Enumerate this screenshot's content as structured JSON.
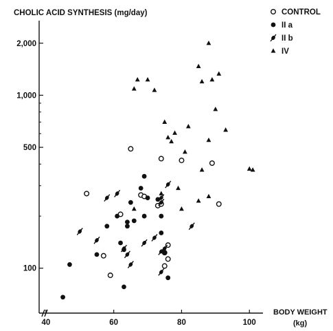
{
  "chart_data": {
    "type": "scatter",
    "title": "",
    "ylabel": "CHOLIC ACID SYNTHESIS (mg/day)",
    "xlabel_line1": "BODY WEIGHT",
    "xlabel_line2": "(kg)",
    "y_scale": "log",
    "x_ticks": [
      "40",
      "60",
      "80",
      "100"
    ],
    "y_ticks": [
      "100",
      "500",
      "1,000",
      "2,000"
    ],
    "x_tick_values": [
      40,
      60,
      80,
      100
    ],
    "y_tick_values": [
      100,
      500,
      1000,
      2000
    ],
    "xlim": [
      38,
      104
    ],
    "ylim": [
      55,
      2700
    ],
    "axis_break": true,
    "grid": false,
    "legend_position": "top-right",
    "series": [
      {
        "name": "CONTROL",
        "marker": "open-circle",
        "points": [
          [
            52,
            270
          ],
          [
            57,
            118
          ],
          [
            59,
            91
          ],
          [
            62,
            205
          ],
          [
            65,
            490
          ],
          [
            68,
            265
          ],
          [
            69,
            260
          ],
          [
            73,
            230
          ],
          [
            74,
            235
          ],
          [
            74,
            430
          ],
          [
            75,
            103
          ],
          [
            75,
            123
          ],
          [
            76,
            136
          ],
          [
            76,
            113
          ],
          [
            80,
            420
          ],
          [
            89,
            405
          ],
          [
            91,
            235
          ]
        ]
      },
      {
        "name": "II a",
        "marker": "filled-circle",
        "points": [
          [
            45,
            68
          ],
          [
            47,
            105
          ],
          [
            55,
            120
          ],
          [
            58,
            175
          ],
          [
            61,
            200
          ],
          [
            62,
            140
          ],
          [
            63,
            128
          ],
          [
            63,
            78
          ],
          [
            64,
            185
          ],
          [
            64,
            175
          ],
          [
            65,
            240
          ],
          [
            66,
            188
          ],
          [
            68,
            290
          ],
          [
            69,
            200
          ],
          [
            69,
            340
          ],
          [
            70,
            255
          ],
          [
            73,
            250
          ],
          [
            74,
            200
          ],
          [
            74,
            160
          ],
          [
            75,
            123
          ],
          [
            76,
            88
          ]
        ]
      },
      {
        "name": "II b",
        "marker": "slashed-dot",
        "points": [
          [
            50,
            163
          ],
          [
            55,
            145
          ],
          [
            58,
            255
          ],
          [
            61,
            270
          ],
          [
            63,
            130
          ],
          [
            64,
            120
          ],
          [
            65,
            105
          ],
          [
            69,
            140
          ],
          [
            72,
            150
          ],
          [
            74,
            95
          ],
          [
            74,
            125
          ],
          [
            74,
            240
          ],
          [
            74,
            255
          ],
          [
            75,
            130
          ],
          [
            76,
            305
          ],
          [
            83,
            175
          ]
        ]
      },
      {
        "name": "IV",
        "marker": "filled-triangle",
        "points": [
          [
            66,
            1090
          ],
          [
            67,
            1230
          ],
          [
            70,
            1230
          ],
          [
            72,
            1070
          ],
          [
            75,
            700
          ],
          [
            76,
            570
          ],
          [
            77,
            540
          ],
          [
            78,
            605
          ],
          [
            79,
            290
          ],
          [
            80,
            220
          ],
          [
            81,
            470
          ],
          [
            82,
            660
          ],
          [
            85,
            1470
          ],
          [
            85,
            245
          ],
          [
            86,
            1200
          ],
          [
            86,
            370
          ],
          [
            88,
            2000
          ],
          [
            88,
            550
          ],
          [
            88,
            260
          ],
          [
            89,
            1230
          ],
          [
            90,
            830
          ],
          [
            91,
            1330
          ],
          [
            93,
            630
          ],
          [
            100,
            375
          ],
          [
            101,
            370
          ],
          [
            66,
            220
          ],
          [
            74,
            270
          ]
        ]
      }
    ]
  }
}
